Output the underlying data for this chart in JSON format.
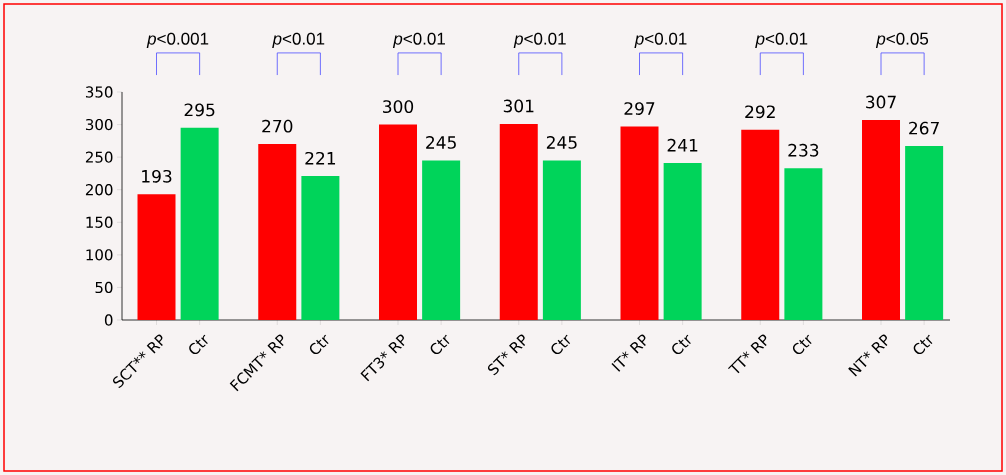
{
  "chart_data": {
    "type": "bar",
    "categories": [
      "SCT** RP",
      "Ctr",
      "FCMT* RP",
      "Ctr",
      "FT3* RP",
      "Ctr",
      "ST*  RP",
      "Ctr",
      "IT*  RP",
      "Ctr",
      "TT*  RP",
      "Ctr",
      "NT*  RP",
      "Ctr"
    ],
    "values": [
      193,
      295,
      270,
      221,
      300,
      245,
      301,
      245,
      297,
      241,
      292,
      233,
      307,
      267
    ],
    "colors": [
      "#ff0000",
      "#00d45a",
      "#ff0000",
      "#00d45a",
      "#ff0000",
      "#00d45a",
      "#ff0000",
      "#00d45a",
      "#ff0000",
      "#00d45a",
      "#ff0000",
      "#00d45a",
      "#ff0000",
      "#00d45a"
    ],
    "ylim": [
      0,
      350
    ],
    "yticks": [
      0,
      50,
      100,
      150,
      200,
      250,
      300,
      350
    ],
    "data_labels": true,
    "grid": false,
    "annotations": [
      "*p*<0.001",
      "*p*<0.01",
      "*p*<0.01",
      "*p*<0.01",
      "*p*<0.01",
      "*p*<0.01",
      "*p*<0.05"
    ]
  }
}
